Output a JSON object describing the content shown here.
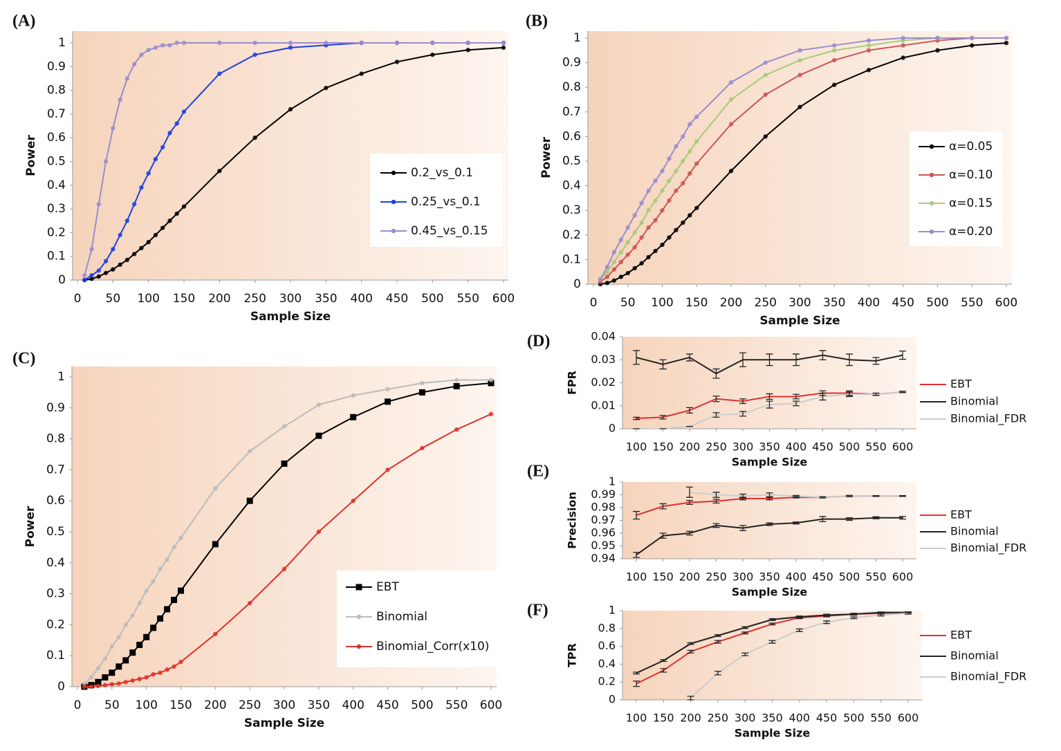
{
  "chart_data": [
    {
      "type": "line",
      "panel": "(A)",
      "xlabel": "Sample Size",
      "ylabel": "Power",
      "x": [
        10,
        20,
        30,
        40,
        50,
        60,
        70,
        80,
        90,
        100,
        110,
        120,
        130,
        140,
        150,
        200,
        250,
        300,
        350,
        400,
        450,
        500,
        550,
        600
      ],
      "xlim": [
        0,
        600
      ],
      "xticks": [
        0,
        50,
        100,
        150,
        200,
        250,
        300,
        350,
        400,
        450,
        500,
        550,
        600
      ],
      "ylim": [
        0,
        1
      ],
      "yticks": [
        0,
        0.1,
        0.2,
        0.3,
        0.4,
        0.5,
        0.6,
        0.7,
        0.8,
        0.9,
        1
      ],
      "series": [
        {
          "name": "0.2_vs_0.1",
          "color": "#000000",
          "values": [
            0,
            0.005,
            0.015,
            0.03,
            0.045,
            0.065,
            0.085,
            0.11,
            0.135,
            0.16,
            0.19,
            0.22,
            0.25,
            0.28,
            0.31,
            0.46,
            0.6,
            0.72,
            0.81,
            0.87,
            0.92,
            0.95,
            0.97,
            0.98
          ]
        },
        {
          "name": "0.25_vs_0.1",
          "color": "#1f3fe0",
          "values": [
            0,
            0.02,
            0.04,
            0.08,
            0.13,
            0.19,
            0.25,
            0.32,
            0.39,
            0.45,
            0.51,
            0.56,
            0.62,
            0.66,
            0.71,
            0.87,
            0.95,
            0.98,
            0.99,
            1,
            1,
            1,
            1,
            1
          ]
        },
        {
          "name": "0.45_vs_0.15",
          "color": "#9a8ccc",
          "values": [
            0.02,
            0.13,
            0.32,
            0.5,
            0.64,
            0.76,
            0.85,
            0.91,
            0.95,
            0.97,
            0.98,
            0.99,
            0.99,
            1,
            1,
            1,
            1,
            1,
            1,
            1,
            1,
            1,
            1,
            1
          ]
        }
      ]
    },
    {
      "type": "line",
      "panel": "(B)",
      "xlabel": "Sample Size",
      "ylabel": "Power",
      "x": [
        10,
        20,
        30,
        40,
        50,
        60,
        70,
        80,
        90,
        100,
        110,
        120,
        130,
        140,
        150,
        200,
        250,
        300,
        350,
        400,
        450,
        500,
        550,
        600
      ],
      "xlim": [
        0,
        600
      ],
      "xticks": [
        0,
        50,
        100,
        150,
        200,
        250,
        300,
        350,
        400,
        450,
        500,
        550,
        600
      ],
      "ylim": [
        0,
        1
      ],
      "yticks": [
        0,
        0.1,
        0.2,
        0.3,
        0.4,
        0.5,
        0.6,
        0.7,
        0.8,
        0.9,
        1
      ],
      "series": [
        {
          "name": "α=0.05",
          "color": "#000000",
          "values": [
            0,
            0.005,
            0.015,
            0.03,
            0.045,
            0.065,
            0.085,
            0.11,
            0.135,
            0.16,
            0.19,
            0.22,
            0.25,
            0.28,
            0.31,
            0.46,
            0.6,
            0.72,
            0.81,
            0.87,
            0.92,
            0.95,
            0.97,
            0.98
          ]
        },
        {
          "name": "α=0.10",
          "color": "#cc5555",
          "values": [
            0.01,
            0.03,
            0.06,
            0.09,
            0.12,
            0.15,
            0.19,
            0.23,
            0.26,
            0.3,
            0.34,
            0.38,
            0.41,
            0.45,
            0.49,
            0.65,
            0.77,
            0.85,
            0.91,
            0.95,
            0.97,
            0.99,
            1,
            1
          ]
        },
        {
          "name": "α=0.15",
          "color": "#a9c97a",
          "values": [
            0.02,
            0.05,
            0.09,
            0.13,
            0.17,
            0.21,
            0.25,
            0.3,
            0.34,
            0.38,
            0.42,
            0.46,
            0.5,
            0.54,
            0.58,
            0.75,
            0.85,
            0.91,
            0.95,
            0.97,
            0.99,
            1,
            1,
            1
          ]
        },
        {
          "name": "α=0.20",
          "color": "#9a8ccc",
          "values": [
            0.02,
            0.07,
            0.13,
            0.18,
            0.23,
            0.28,
            0.33,
            0.38,
            0.42,
            0.46,
            0.51,
            0.56,
            0.6,
            0.65,
            0.68,
            0.82,
            0.9,
            0.95,
            0.97,
            0.99,
            1,
            1,
            1,
            1
          ]
        }
      ]
    },
    {
      "type": "line",
      "panel": "(C)",
      "xlabel": "Sample Size",
      "ylabel": "Power",
      "x": [
        10,
        20,
        30,
        40,
        50,
        60,
        70,
        80,
        90,
        100,
        110,
        120,
        130,
        140,
        150,
        200,
        250,
        300,
        350,
        400,
        450,
        500,
        550,
        600
      ],
      "xlim": [
        0,
        600
      ],
      "xticks": [
        0,
        50,
        100,
        150,
        200,
        250,
        300,
        350,
        400,
        450,
        500,
        550,
        600
      ],
      "ylim": [
        0,
        1
      ],
      "yticks": [
        0,
        0.1,
        0.2,
        0.3,
        0.4,
        0.5,
        0.6,
        0.7,
        0.8,
        0.9,
        1
      ],
      "series": [
        {
          "name": "EBT",
          "color": "#000000",
          "marker": "square",
          "values": [
            0,
            0.005,
            0.015,
            0.03,
            0.045,
            0.065,
            0.085,
            0.11,
            0.135,
            0.16,
            0.19,
            0.22,
            0.25,
            0.28,
            0.31,
            0.46,
            0.6,
            0.72,
            0.81,
            0.87,
            0.92,
            0.95,
            0.97,
            0.98
          ]
        },
        {
          "name": "Binomial",
          "color": "#bbbbbb",
          "values": [
            0.01,
            0.03,
            0.06,
            0.09,
            0.13,
            0.16,
            0.2,
            0.23,
            0.27,
            0.31,
            0.34,
            0.38,
            0.41,
            0.45,
            0.48,
            0.64,
            0.76,
            0.84,
            0.91,
            0.94,
            0.96,
            0.98,
            0.99,
            0.99
          ]
        },
        {
          "name": "Binomial_Corr(x10)",
          "color": "#e0302a",
          "values": [
            0,
            0,
            0.002,
            0.005,
            0.008,
            0.01,
            0.015,
            0.02,
            0.025,
            0.03,
            0.04,
            0.045,
            0.055,
            0.065,
            0.08,
            0.17,
            0.27,
            0.38,
            0.5,
            0.6,
            0.7,
            0.77,
            0.83,
            0.88
          ]
        }
      ]
    },
    {
      "type": "errorline",
      "panel": "(D)",
      "xlabel": "Sample Size",
      "ylabel": "FPR",
      "x": [
        100,
        150,
        200,
        250,
        300,
        350,
        400,
        450,
        500,
        550,
        600
      ],
      "xlim": [
        100,
        600
      ],
      "xticks": [
        100,
        150,
        200,
        250,
        300,
        350,
        400,
        450,
        500,
        550,
        600
      ],
      "ylim": [
        0,
        0.04
      ],
      "yticks": [
        0,
        0.01,
        0.02,
        0.03,
        0.04
      ],
      "series": [
        {
          "name": "EBT",
          "color": "#e03030",
          "values": [
            0.0045,
            0.005,
            0.008,
            0.013,
            0.012,
            0.014,
            0.014,
            0.0155,
            0.0155,
            0.015,
            0.016
          ],
          "errors": [
            0.0005,
            0.0008,
            0.0012,
            0.0012,
            0.001,
            0.0012,
            0.001,
            0.001,
            0.001,
            0.0005,
            0.0003
          ]
        },
        {
          "name": "Binomial",
          "color": "#222222",
          "values": [
            0.031,
            0.028,
            0.031,
            0.024,
            0.03,
            0.03,
            0.03,
            0.032,
            0.03,
            0.0295,
            0.032
          ],
          "errors": [
            0.003,
            0.002,
            0.0015,
            0.002,
            0.003,
            0.0025,
            0.0025,
            0.002,
            0.0025,
            0.0015,
            0.0018
          ]
        },
        {
          "name": "Binomial_FDR",
          "color": "#cccccc",
          "values": [
            0,
            0,
            0.001,
            0.006,
            0.0065,
            0.0105,
            0.011,
            0.014,
            0.015,
            0.015,
            0.016
          ],
          "errors": [
            0,
            0,
            0,
            0.001,
            0.001,
            0.0015,
            0.001,
            0.0015,
            0.001,
            0.0005,
            0.0003
          ]
        }
      ]
    },
    {
      "type": "errorline",
      "panel": "(E)",
      "xlabel": "Sample Size",
      "ylabel": "Precision",
      "x": [
        100,
        150,
        200,
        250,
        300,
        350,
        400,
        450,
        500,
        550,
        600
      ],
      "xlim": [
        100,
        600
      ],
      "xticks": [
        100,
        150,
        200,
        250,
        300,
        350,
        400,
        450,
        500,
        550,
        600
      ],
      "ylim": [
        0.94,
        1
      ],
      "yticks": [
        0.94,
        0.95,
        0.96,
        0.97,
        0.98,
        0.99,
        1
      ],
      "series": [
        {
          "name": "EBT",
          "color": "#e03030",
          "values": [
            0.974,
            0.981,
            0.984,
            0.985,
            0.987,
            0.987,
            0.988,
            0.988,
            0.989,
            0.989,
            0.989
          ],
          "errors": [
            0.003,
            0.002,
            0.0015,
            0.0015,
            0.001,
            0.001,
            0.0005,
            0.0005,
            0.0005,
            0.0003,
            0.0003
          ]
        },
        {
          "name": "Binomial",
          "color": "#222222",
          "values": [
            0.943,
            0.958,
            0.96,
            0.966,
            0.964,
            0.967,
            0.968,
            0.971,
            0.971,
            0.972,
            0.972
          ],
          "errors": [
            0.002,
            0.002,
            0.0015,
            0.0015,
            0.002,
            0.001,
            0.0008,
            0.002,
            0.001,
            0.0008,
            0.001
          ]
        },
        {
          "name": "Binomial_FDR",
          "color": "#cccccc",
          "values": [
            null,
            null,
            0.992,
            0.99,
            0.989,
            0.99,
            0.989,
            0.988,
            0.989,
            0.989,
            0.989
          ],
          "errors": [
            null,
            null,
            0.004,
            0.002,
            0.0015,
            0.0015,
            0.0005,
            0.0005,
            0.0005,
            0.0003,
            0.0003
          ]
        }
      ]
    },
    {
      "type": "errorline",
      "panel": "(F)",
      "xlabel": "Sample Size",
      "ylabel": "TPR",
      "x": [
        100,
        150,
        200,
        250,
        300,
        350,
        400,
        450,
        500,
        550,
        600
      ],
      "xlim": [
        100,
        600
      ],
      "xticks": [
        100,
        150,
        200,
        250,
        300,
        350,
        400,
        450,
        500,
        550,
        600
      ],
      "ylim": [
        0,
        1
      ],
      "yticks": [
        0,
        0.2,
        0.4,
        0.6,
        0.8,
        1
      ],
      "series": [
        {
          "name": "EBT",
          "color": "#e03030",
          "values": [
            0.18,
            0.33,
            0.54,
            0.65,
            0.75,
            0.85,
            0.92,
            0.94,
            0.96,
            0.97,
            0.98
          ],
          "errors": [
            0.03,
            0.02,
            0.015,
            0.015,
            0.01,
            0.01,
            0.01,
            0.01,
            0.01,
            0.01,
            0.005
          ]
        },
        {
          "name": "Binomial",
          "color": "#222222",
          "values": [
            0.3,
            0.44,
            0.63,
            0.72,
            0.81,
            0.9,
            0.93,
            0.95,
            0.96,
            0.98,
            0.98
          ],
          "errors": [
            0.01,
            0.01,
            0.01,
            0.01,
            0.01,
            0.01,
            0.01,
            0.01,
            0.01,
            0.005,
            0.005
          ]
        },
        {
          "name": "Binomial_FDR",
          "color": "#cccccc",
          "values": [
            null,
            null,
            0.02,
            0.3,
            0.51,
            0.65,
            0.78,
            0.87,
            0.92,
            0.95,
            0.97
          ],
          "errors": [
            null,
            null,
            0.02,
            0.02,
            0.015,
            0.015,
            0.015,
            0.015,
            0.01,
            0.01,
            0.01
          ]
        }
      ]
    }
  ]
}
